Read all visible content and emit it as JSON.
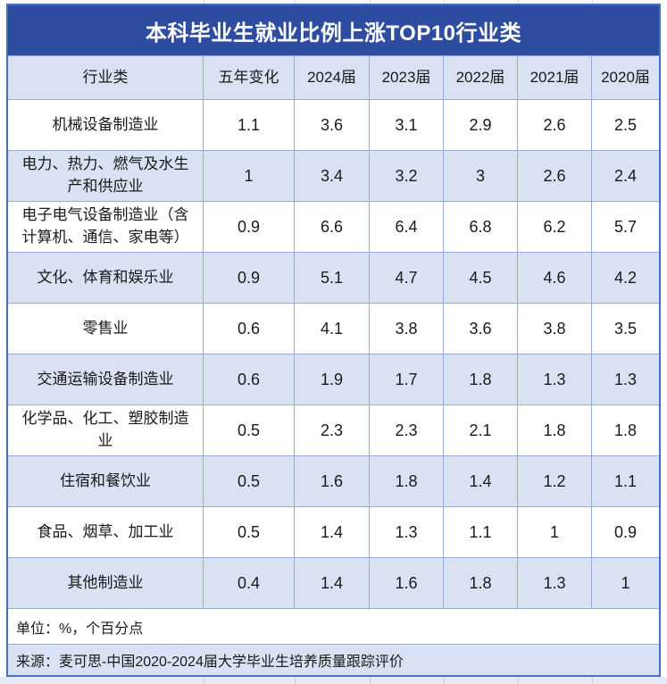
{
  "chart_data": {
    "type": "table",
    "title": "本科毕业生就业比例上涨TOP10行业类",
    "columns": [
      "行业类",
      "五年变化",
      "2024届",
      "2023届",
      "2022届",
      "2021届",
      "2020届"
    ],
    "rows": [
      {
        "industry": "机械设备制造业",
        "values": [
          1.1,
          3.6,
          3.1,
          2.9,
          2.6,
          2.5
        ]
      },
      {
        "industry": "电力、热力、燃气及水生产和供应业",
        "values": [
          1,
          3.4,
          3.2,
          3,
          2.6,
          2.4
        ]
      },
      {
        "industry": "电子电气设备制造业（含计算机、通信、家电等）",
        "values": [
          0.9,
          6.6,
          6.4,
          6.8,
          6.2,
          5.7
        ]
      },
      {
        "industry": "文化、体育和娱乐业",
        "values": [
          0.9,
          5.1,
          4.7,
          4.5,
          4.6,
          4.2
        ]
      },
      {
        "industry": "零售业",
        "values": [
          0.6,
          4.1,
          3.8,
          3.6,
          3.8,
          3.5
        ]
      },
      {
        "industry": "交通运输设备制造业",
        "values": [
          0.6,
          1.9,
          1.7,
          1.8,
          1.3,
          1.3
        ]
      },
      {
        "industry": "化学品、化工、塑胶制造业",
        "values": [
          0.5,
          2.3,
          2.3,
          2.1,
          1.8,
          1.8
        ]
      },
      {
        "industry": "住宿和餐饮业",
        "values": [
          0.5,
          1.6,
          1.8,
          1.4,
          1.2,
          1.1
        ]
      },
      {
        "industry": "食品、烟草、加工业",
        "values": [
          0.5,
          1.4,
          1.3,
          1.1,
          1,
          0.9
        ]
      },
      {
        "industry": "其他制造业",
        "values": [
          0.4,
          1.4,
          1.6,
          1.8,
          1.3,
          1
        ]
      }
    ],
    "unit_note": "单位：%，个百分点",
    "source_note": "来源：麦可思-中国2020-2024届大学毕业生培养质量跟踪评价"
  },
  "colors": {
    "title_bg": "#2F4DA0",
    "title_text": "#FFFFFF",
    "row_alt_bg": "#D9E1F2",
    "border": "#95ACD9",
    "outer_border": "#4472C4",
    "text": "#1A1A1A"
  }
}
